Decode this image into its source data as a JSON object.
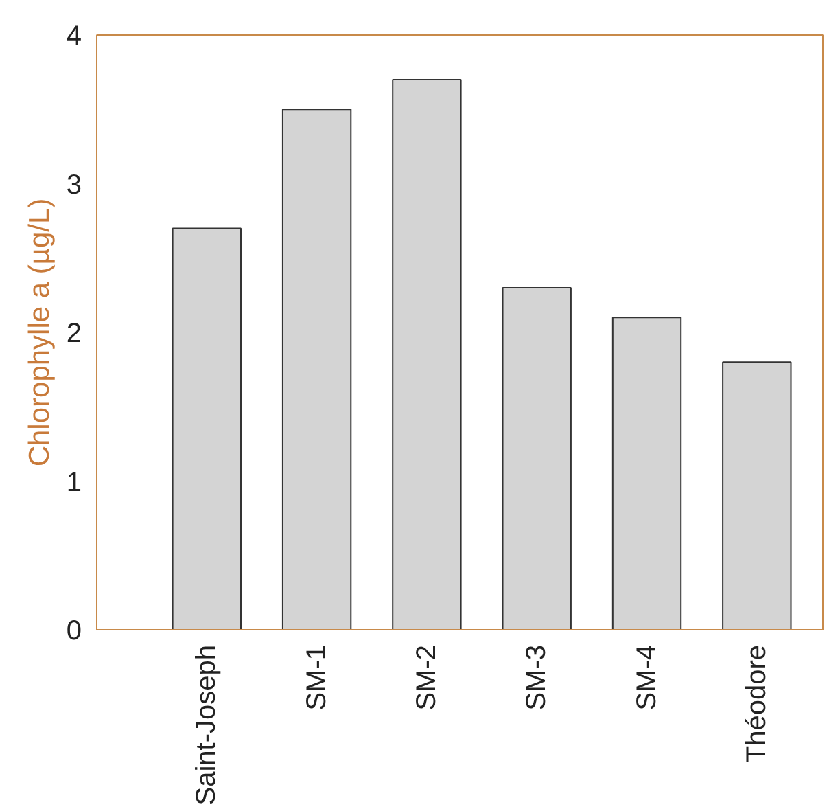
{
  "chart_data": {
    "type": "bar",
    "ylabel": "Chlorophylle a (µg/L)",
    "categories": [
      "Saint-Joseph",
      "SM-1",
      "SM-2",
      "SM-3",
      "SM-4",
      "Théodore"
    ],
    "values": [
      2.7,
      3.5,
      3.7,
      2.3,
      2.1,
      1.8
    ],
    "color": "#d4d4d4",
    "ylim": [
      0,
      4
    ],
    "yticks": [
      0,
      1,
      2,
      3,
      4
    ],
    "grid": false
  }
}
